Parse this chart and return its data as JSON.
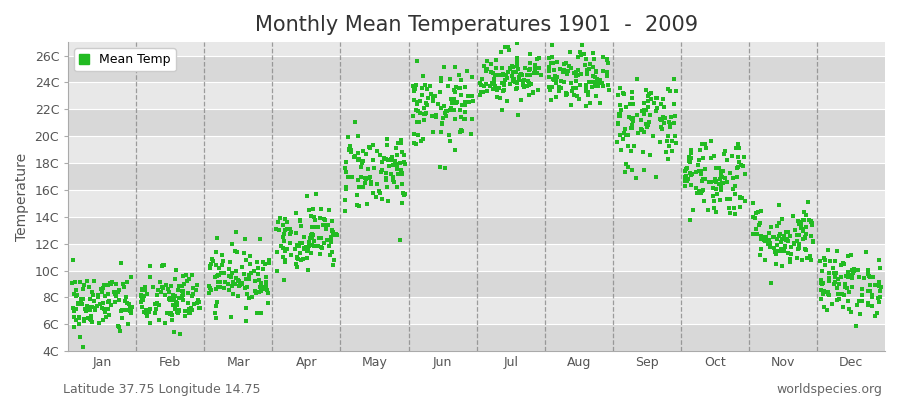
{
  "title": "Monthly Mean Temperatures 1901  -  2009",
  "ylabel": "Temperature",
  "months": [
    "Jan",
    "Feb",
    "Mar",
    "Apr",
    "May",
    "Jun",
    "Jul",
    "Aug",
    "Sep",
    "Oct",
    "Nov",
    "Dec"
  ],
  "ylim": [
    4,
    27
  ],
  "yticks": [
    4,
    6,
    8,
    10,
    12,
    14,
    16,
    18,
    20,
    22,
    24,
    26
  ],
  "ytick_labels": [
    "4C",
    "6C",
    "8C",
    "10C",
    "12C",
    "14C",
    "16C",
    "18C",
    "20C",
    "22C",
    "24C",
    "26C"
  ],
  "mean_temps": [
    7.5,
    7.8,
    9.5,
    12.5,
    17.5,
    22.0,
    24.5,
    24.2,
    21.0,
    17.0,
    12.5,
    9.0
  ],
  "temp_spreads": [
    1.2,
    1.2,
    1.2,
    1.2,
    1.5,
    1.5,
    1.0,
    1.0,
    1.8,
    1.5,
    1.2,
    1.2
  ],
  "n_years": 109,
  "dot_color": "#22bb22",
  "dot_size": 6,
  "plot_bg_light": "#e8e8e8",
  "plot_bg_dark": "#d8d8d8",
  "fig_bg_color": "#ffffff",
  "legend_label": "Mean Temp",
  "footer_left": "Latitude 37.75 Longitude 14.75",
  "footer_right": "worldspecies.org",
  "footer_fontsize": 9,
  "title_fontsize": 15,
  "axis_label_fontsize": 10,
  "tick_fontsize": 9,
  "dashed_line_color": "#888888",
  "grid_line_color": "#ffffff"
}
